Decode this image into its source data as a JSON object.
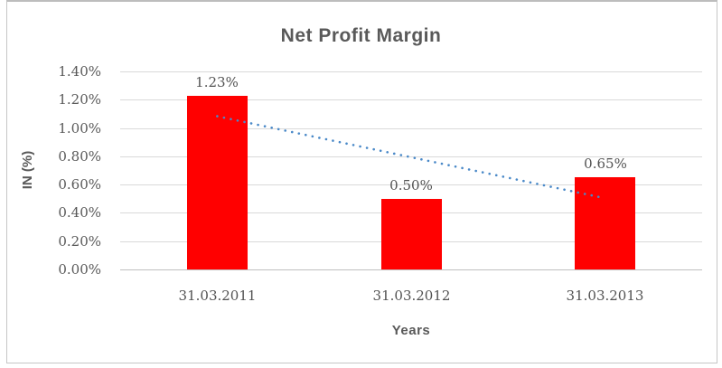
{
  "window": {
    "background": "#ffffff",
    "border_color": "#c6c6c6"
  },
  "chart_data": {
    "type": "bar",
    "title": "Net Profit Margin",
    "xlabel": "Years",
    "ylabel": "IN (%)",
    "categories": [
      "31.03.2011",
      "31.03.2012",
      "31.03.2013"
    ],
    "values": [
      1.23,
      0.5,
      0.65
    ],
    "value_labels": [
      "1.23%",
      "0.50%",
      "0.65%"
    ],
    "ylim": [
      0,
      1.4
    ],
    "y_tick_values": [
      1.4,
      1.2,
      1.0,
      0.8,
      0.6,
      0.4,
      0.2,
      0.0
    ],
    "y_tick_labels": [
      "1.40%",
      "1.20%",
      "1.00%",
      "0.80%",
      "0.60%",
      "0.40%",
      "0.20%",
      "0.00%"
    ],
    "grid": true,
    "legend": "none",
    "bar_color": "#ff0000",
    "gridline_color": "#d9d9d9",
    "axis_line_color": "#bfbfbf",
    "text_color": "#595959",
    "trendline": {
      "type": "linear",
      "style": "dotted",
      "color": "#4a89c8",
      "start_value": 1.0833,
      "end_value": 0.5033
    }
  }
}
